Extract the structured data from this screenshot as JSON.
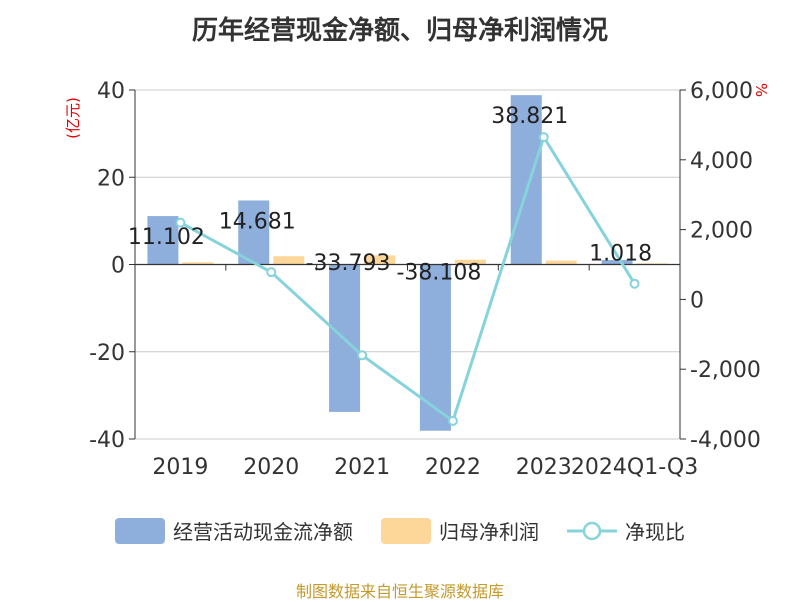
{
  "title": "历年经营现金净额、归母净利润情况",
  "source": "制图数据来自恒生聚源数据库",
  "colors": {
    "bar_ocf": "#8eaedc",
    "bar_np": "#fdd79a",
    "line": "#86d3db",
    "grid": "#cccccc",
    "axis": "#333333",
    "unit": "#e00000"
  },
  "chart_data": {
    "type": "bar",
    "title": "历年经营现金净额、归母净利润情况",
    "categories": [
      "2019",
      "2020",
      "2021",
      "2022",
      "2023",
      "2024Q1-Q3"
    ],
    "y_left": {
      "unit_label": "(亿元)",
      "ylim": [
        -40,
        40
      ],
      "ticks": [
        -40,
        -20,
        0,
        20,
        40
      ]
    },
    "y_right": {
      "unit_label": "%",
      "ylim": [
        -4000,
        6000
      ],
      "ticks": [
        "-4,000",
        "-2,000",
        "0",
        "2,000",
        "4,000",
        "6,000"
      ],
      "tick_values": [
        -4000,
        -2000,
        0,
        2000,
        4000,
        6000
      ]
    },
    "grid": true,
    "legend_position": "bottom",
    "series": [
      {
        "name": "经营活动现金流净额",
        "type": "bar",
        "axis": "left",
        "values": [
          11.102,
          14.681,
          -33.793,
          -38.108,
          38.821,
          1.018
        ],
        "labels": [
          "11.102",
          "14.681",
          "-33.793",
          "-38.108",
          "38.821",
          "1.018"
        ]
      },
      {
        "name": "归母净利润",
        "type": "bar",
        "axis": "left",
        "values": [
          0.5,
          1.9,
          2.1,
          1.1,
          0.9,
          0.25
        ]
      },
      {
        "name": "净现比",
        "type": "line",
        "axis": "right",
        "values": [
          2200,
          780,
          -1600,
          -3480,
          4650,
          450
        ]
      }
    ]
  }
}
